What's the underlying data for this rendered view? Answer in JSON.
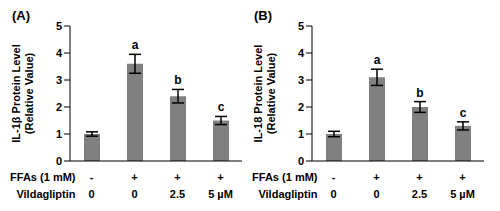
{
  "chart_data": [
    {
      "type": "bar",
      "title": "(A)",
      "ylabel": [
        "IL-1β Protein Level",
        "(Relative Value)"
      ],
      "categories": [
        null,
        null,
        null,
        null
      ],
      "values": [
        1.0,
        3.6,
        2.4,
        1.5
      ],
      "errors": [
        0.08,
        0.35,
        0.25,
        0.15
      ],
      "significance": [
        null,
        "a",
        "b",
        "c"
      ],
      "conditions": [
        {
          "label": "FFAs (1 mM)",
          "values": [
            "-",
            "+",
            "+",
            "+"
          ]
        },
        {
          "label": "Vildagliptin",
          "values": [
            "0",
            "0",
            "2.5",
            "5 µM"
          ]
        }
      ],
      "color": "#808080",
      "ylim": [
        0,
        5
      ],
      "yticks": [
        0,
        1,
        2,
        3,
        4,
        5
      ],
      "grid": false
    },
    {
      "type": "bar",
      "title": "(B)",
      "ylabel": [
        "IL-18 Protein Level",
        "(Relative Value)"
      ],
      "categories": [
        null,
        null,
        null,
        null
      ],
      "values": [
        1.0,
        3.1,
        2.0,
        1.3
      ],
      "errors": [
        0.1,
        0.3,
        0.2,
        0.15
      ],
      "significance": [
        null,
        "a",
        "b",
        "c"
      ],
      "conditions": [
        {
          "label": "FFAs (1 mM)",
          "values": [
            "-",
            "+",
            "+",
            "+"
          ]
        },
        {
          "label": "Vildagliptin",
          "values": [
            "0",
            "0",
            "2.5",
            "5 µM"
          ]
        }
      ],
      "color": "#808080",
      "ylim": [
        0,
        5
      ],
      "yticks": [
        0,
        1,
        2,
        3,
        4,
        5
      ],
      "grid": false
    }
  ]
}
